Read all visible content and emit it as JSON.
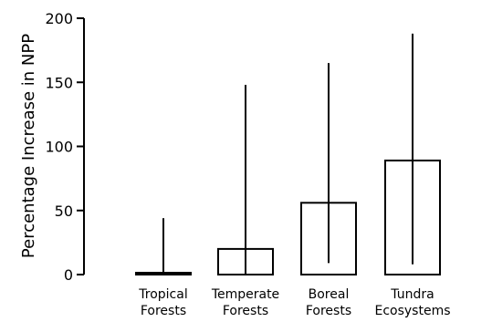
{
  "chart_data": {
    "type": "bar",
    "title": "",
    "xlabel": "",
    "ylabel": "Percentage Increase in NPP",
    "categories": [
      [
        "Tropical",
        "Forests"
      ],
      [
        "Temperate",
        "Forests"
      ],
      [
        "Boreal",
        "Forests"
      ],
      [
        "Tundra",
        "Ecosystems"
      ]
    ],
    "values": [
      1,
      20,
      56,
      89
    ],
    "error_low": [
      1,
      0,
      9,
      8
    ],
    "error_high": [
      44,
      148,
      165,
      188
    ],
    "ylim": [
      0,
      200
    ],
    "yticks": [
      0,
      50,
      100,
      150,
      200
    ],
    "grid": false,
    "legend": "none"
  }
}
